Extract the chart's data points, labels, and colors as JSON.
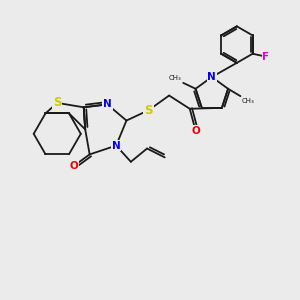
{
  "background_color": "#ebebeb",
  "figsize": [
    3.0,
    3.0
  ],
  "dpi": 100,
  "bond_color": "#1a1a1a",
  "bond_width": 1.3,
  "atom_colors": {
    "S": "#cccc00",
    "N": "#0000ee",
    "O": "#ee0000",
    "F": "#dd00dd",
    "C": "#1a1a1a"
  },
  "font_size": 7.5,
  "atom_bg": "#ebebeb"
}
